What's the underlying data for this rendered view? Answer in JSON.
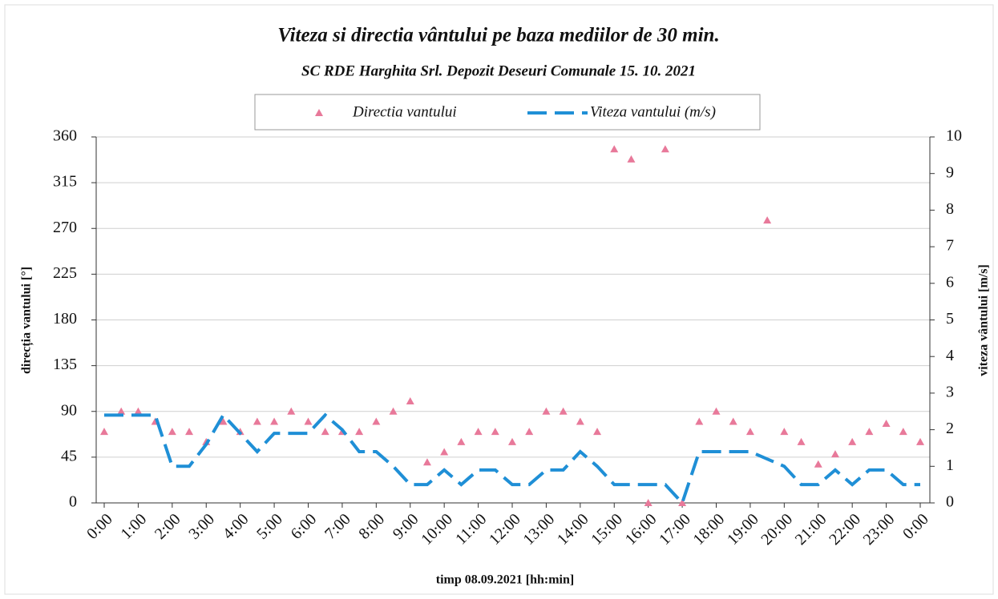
{
  "chart_data": {
    "type": "line",
    "title": "Viteza si directia vântului pe baza mediilor de 30 min.",
    "subtitle": "SC RDE Harghita Srl. Depozit Deseuri Comunale 15. 10. 2021",
    "xlabel": "timp 08.09.2021 [hh:min]",
    "ylabel": "direcția vantului [°]",
    "y2label": "viteza  vântului [m/s]",
    "x": [
      0,
      0.5,
      1,
      1.5,
      2,
      2.5,
      3,
      3.5,
      4,
      4.5,
      5,
      5.5,
      6,
      6.5,
      7,
      7.5,
      8,
      8.5,
      9,
      9.5,
      10,
      10.5,
      11,
      11.5,
      12,
      12.5,
      13,
      13.5,
      14,
      14.5,
      15,
      15.5,
      16,
      16.5,
      17,
      17.5,
      18,
      18.5,
      19,
      19.5,
      20,
      20.5,
      21,
      21.5,
      22,
      22.5,
      23,
      23.5,
      24
    ],
    "xlim": [
      0,
      24
    ],
    "xticks": [
      {
        "value": 0,
        "label": "0:00"
      },
      {
        "value": 1,
        "label": "1:00"
      },
      {
        "value": 2,
        "label": "2:00"
      },
      {
        "value": 3,
        "label": "3:00"
      },
      {
        "value": 4,
        "label": "4:00"
      },
      {
        "value": 5,
        "label": "5:00"
      },
      {
        "value": 6,
        "label": "6:00"
      },
      {
        "value": 7,
        "label": "7:00"
      },
      {
        "value": 8,
        "label": "8:00"
      },
      {
        "value": 9,
        "label": "9:00"
      },
      {
        "value": 10,
        "label": "10:00"
      },
      {
        "value": 11,
        "label": "11:00"
      },
      {
        "value": 12,
        "label": "12:00"
      },
      {
        "value": 13,
        "label": "13:00"
      },
      {
        "value": 14,
        "label": "14:00"
      },
      {
        "value": 15,
        "label": "15:00"
      },
      {
        "value": 16,
        "label": "16:00"
      },
      {
        "value": 17,
        "label": "17:00"
      },
      {
        "value": 18,
        "label": "18:00"
      },
      {
        "value": 19,
        "label": "19:00"
      },
      {
        "value": 20,
        "label": "20:00"
      },
      {
        "value": 21,
        "label": "21:00"
      },
      {
        "value": 22,
        "label": "22:00"
      },
      {
        "value": 23,
        "label": "23:00"
      },
      {
        "value": 24,
        "label": "0:00"
      }
    ],
    "ylim": [
      0,
      360
    ],
    "yticks": [
      0,
      45,
      90,
      135,
      180,
      225,
      270,
      315,
      360
    ],
    "y2lim": [
      0,
      10
    ],
    "y2ticks": [
      0,
      1,
      2,
      3,
      4,
      5,
      6,
      7,
      8,
      9,
      10
    ],
    "grid": true,
    "series": [
      {
        "name": "Directia vantului",
        "color": "#e8799a",
        "marker": "triangle",
        "values": [
          70,
          90,
          90,
          80,
          70,
          70,
          60,
          80,
          70,
          80,
          80,
          90,
          80,
          70,
          70,
          70,
          80,
          90,
          100,
          40,
          50,
          60,
          70,
          70,
          60,
          70,
          90,
          90,
          80,
          70,
          348,
          338,
          0,
          348,
          0,
          80,
          90,
          80,
          70,
          278,
          70,
          60,
          38,
          48,
          60,
          70,
          78,
          70,
          60
        ]
      },
      {
        "name": "Viteza vantului (m/s)",
        "color": "#1f8fd6",
        "axis": "y2",
        "dash": true,
        "values": [
          2.4,
          2.4,
          2.4,
          2.4,
          1.0,
          1.0,
          1.6,
          2.4,
          1.9,
          1.4,
          1.9,
          1.9,
          1.9,
          2.4,
          2.0,
          1.4,
          1.4,
          1.0,
          0.5,
          0.5,
          0.9,
          0.5,
          0.9,
          0.9,
          0.5,
          0.5,
          0.9,
          0.9,
          1.4,
          1.0,
          0.5,
          0.5,
          0.5,
          0.5,
          0,
          1.4,
          1.4,
          1.4,
          1.4,
          1.2,
          1.0,
          0.5,
          0.5,
          0.9,
          0.5,
          0.9,
          0.9,
          0.5,
          0.5
        ]
      }
    ]
  }
}
